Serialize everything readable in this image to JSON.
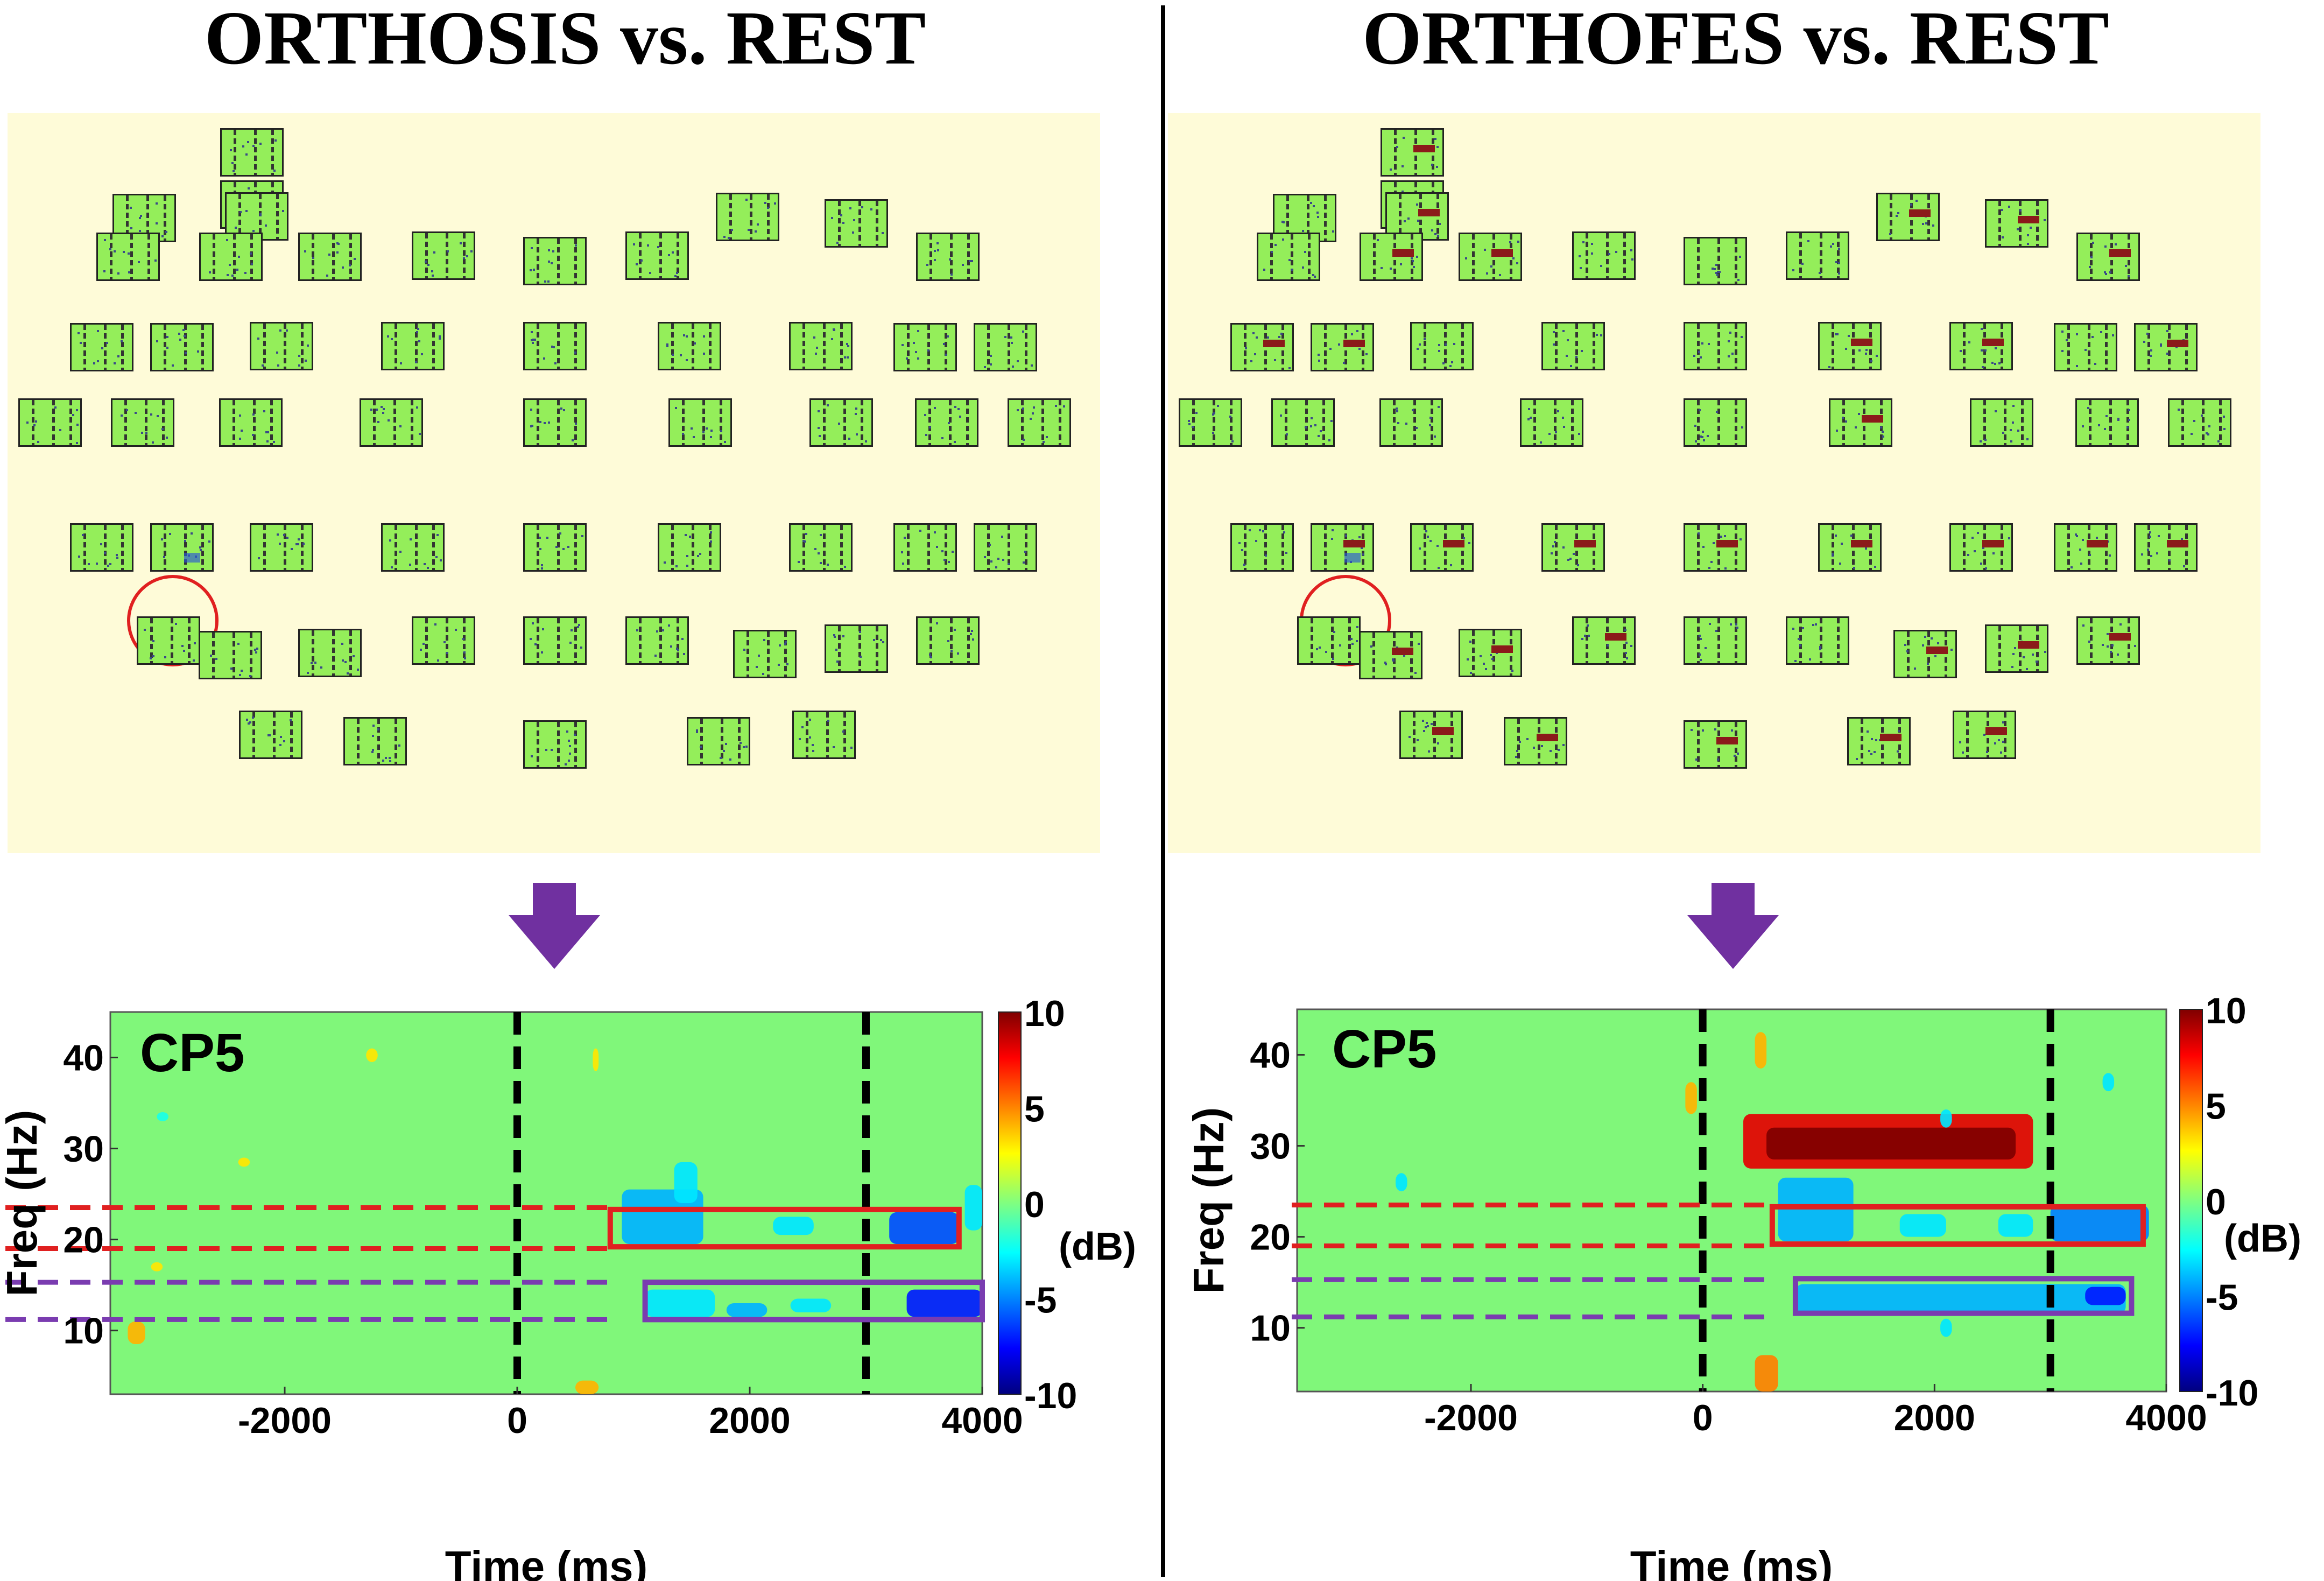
{
  "figure": {
    "left_title": "ORTHOSIS vs. REST",
    "right_title": "ORTHOFES vs. REST",
    "colors": {
      "headmap_bg": "#fefbd8",
      "tile_fill": "#94ee5a",
      "plot_bg": "#80f77a",
      "highlight_red": "#e02020",
      "highlight_purple": "#7a3cb0",
      "arrow": "#7030a0"
    }
  },
  "chart_data": [
    {
      "type": "heatmap",
      "panel": "left",
      "channel_label": "CP5",
      "xlabel": "Time (ms)",
      "ylabel": "Freq (Hz)",
      "x_range": [
        -3500,
        4000
      ],
      "y_range": [
        3,
        45
      ],
      "x_ticks": [
        -2000,
        0,
        2000,
        4000
      ],
      "y_ticks": [
        10,
        20,
        30,
        40
      ],
      "colorbar": {
        "range": [
          -10,
          10
        ],
        "ticks": [
          10,
          5,
          0,
          -5,
          -10
        ],
        "unit_label": "(dB)"
      },
      "event_lines_ms": [
        0,
        3000
      ],
      "beta_band_hz": [
        19,
        23.5
      ],
      "mu_band_hz": [
        11.2,
        15.3
      ],
      "beta_box": {
        "time_ms": [
          800,
          3800
        ],
        "freq_hz": [
          19.2,
          23.3
        ]
      },
      "mu_box": {
        "time_ms": [
          1100,
          4000
        ],
        "freq_hz": [
          11.2,
          15.3
        ]
      },
      "blobs": [
        {
          "t": [
            900,
            1600
          ],
          "f": [
            19.5,
            25.5
          ],
          "db": -4
        },
        {
          "t": [
            1350,
            1550
          ],
          "f": [
            24,
            28.5
          ],
          "db": -3
        },
        {
          "t": [
            2200,
            2550
          ],
          "f": [
            20.5,
            22.5
          ],
          "db": -3
        },
        {
          "t": [
            3200,
            3800
          ],
          "f": [
            19.5,
            23
          ],
          "db": -6
        },
        {
          "t": [
            3850,
            4000
          ],
          "f": [
            21,
            26
          ],
          "db": -3
        },
        {
          "t": [
            1100,
            1700
          ],
          "f": [
            11.5,
            14.5
          ],
          "db": -3
        },
        {
          "t": [
            1800,
            2150
          ],
          "f": [
            11.5,
            13
          ],
          "db": -4
        },
        {
          "t": [
            2350,
            2700
          ],
          "f": [
            12,
            13.5
          ],
          "db": -3
        },
        {
          "t": [
            3350,
            4000
          ],
          "f": [
            11.5,
            14.5
          ],
          "db": -7
        },
        {
          "t": [
            -3350,
            -3200
          ],
          "f": [
            8.5,
            11
          ],
          "db": 4
        },
        {
          "t": [
            -3150,
            -3050
          ],
          "f": [
            16.5,
            17.5
          ],
          "db": 3
        },
        {
          "t": [
            -2400,
            -2300
          ],
          "f": [
            28,
            29
          ],
          "db": 3
        },
        {
          "t": [
            -1300,
            -1200
          ],
          "f": [
            39.5,
            41
          ],
          "db": 3
        },
        {
          "t": [
            500,
            700
          ],
          "f": [
            3,
            4.5
          ],
          "db": 4
        },
        {
          "t": [
            -3100,
            -3000
          ],
          "f": [
            33,
            34
          ],
          "db": -2
        },
        {
          "t": [
            650,
            700
          ],
          "f": [
            38.5,
            41
          ],
          "db": 3
        }
      ]
    },
    {
      "type": "heatmap",
      "panel": "right",
      "channel_label": "CP5",
      "xlabel": "Time (ms)",
      "ylabel": "Freq (Hz)",
      "x_range": [
        -3500,
        4000
      ],
      "y_range": [
        3,
        45
      ],
      "x_ticks": [
        -2000,
        0,
        2000,
        4000
      ],
      "y_ticks": [
        10,
        20,
        30,
        40
      ],
      "colorbar": {
        "range": [
          -10,
          10
        ],
        "ticks": [
          10,
          5,
          0,
          -5,
          -10
        ],
        "unit_label": "(dB)"
      },
      "event_lines_ms": [
        0,
        3000
      ],
      "beta_band_hz": [
        19,
        23.5
      ],
      "mu_band_hz": [
        11.2,
        15.3
      ],
      "beta_box": {
        "time_ms": [
          600,
          3800
        ],
        "freq_hz": [
          19.2,
          23.3
        ]
      },
      "mu_box": {
        "time_ms": [
          800,
          3700
        ],
        "freq_hz": [
          11.6,
          15.4
        ]
      },
      "blobs": [
        {
          "t": [
            350,
            2850
          ],
          "f": [
            27.5,
            33.5
          ],
          "db": 8
        },
        {
          "t": [
            550,
            2700
          ],
          "f": [
            28.5,
            32
          ],
          "db": 10
        },
        {
          "t": [
            650,
            1300
          ],
          "f": [
            19.5,
            26.5
          ],
          "db": -4
        },
        {
          "t": [
            1700,
            2100
          ],
          "f": [
            20,
            22.5
          ],
          "db": -3
        },
        {
          "t": [
            2550,
            2850
          ],
          "f": [
            20,
            22.5
          ],
          "db": -3
        },
        {
          "t": [
            3000,
            3850
          ],
          "f": [
            19.5,
            23.5
          ],
          "db": -5
        },
        {
          "t": [
            800,
            3650
          ],
          "f": [
            11.5,
            14.8
          ],
          "db": -4
        },
        {
          "t": [
            3300,
            3650
          ],
          "f": [
            12.5,
            14.5
          ],
          "db": -7
        },
        {
          "t": [
            450,
            550
          ],
          "f": [
            38.5,
            42.5
          ],
          "db": 4
        },
        {
          "t": [
            -150,
            -50
          ],
          "f": [
            33.5,
            37
          ],
          "db": 4
        },
        {
          "t": [
            450,
            650
          ],
          "f": [
            3,
            7
          ],
          "db": 5
        },
        {
          "t": [
            2050,
            2150
          ],
          "f": [
            32,
            34
          ],
          "db": -3
        },
        {
          "t": [
            -2650,
            -2550
          ],
          "f": [
            25,
            27
          ],
          "db": -3
        },
        {
          "t": [
            3450,
            3550
          ],
          "f": [
            36,
            38
          ],
          "db": -3
        },
        {
          "t": [
            2050,
            2150
          ],
          "f": [
            9,
            11
          ],
          "db": -3
        }
      ]
    }
  ]
}
